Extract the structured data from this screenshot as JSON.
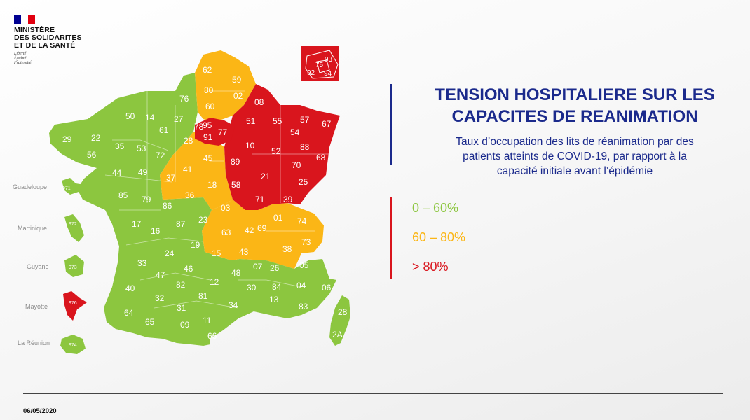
{
  "header": {
    "ministry_lines": [
      "MINISTÈRE",
      "DES SOLIDARITÉS",
      "ET DE LA SANTÉ"
    ],
    "motto_lines": [
      "Liberté",
      "Égalité",
      "Fraternité"
    ],
    "flag_colors": [
      "#000091",
      "#ffffff",
      "#e1000f"
    ]
  },
  "title_lines": [
    "TENSION HOSPITALIERE SUR LES",
    "CAPACITES DE REANIMATION"
  ],
  "subtitle_lines": [
    "Taux d’occupation des lits de réanimation par des",
    "patients atteints de COVID-19, par rapport à la",
    "capacité initiale avant l’épidémie"
  ],
  "legend": [
    {
      "label": "0 – 60%",
      "color": "#8cc63f",
      "category": "green"
    },
    {
      "label": "60 – 80%",
      "color": "#fbb616",
      "category": "orange"
    },
    {
      "label": "> 80%",
      "color": "#d9151d",
      "category": "red"
    }
  ],
  "date": "06/05/2020",
  "map": {
    "colors": {
      "green": "#8cc63f",
      "orange": "#fbb616",
      "red": "#d9151d"
    },
    "departments": [
      {
        "code": "62",
        "status": "orange"
      },
      {
        "code": "59",
        "status": "orange"
      },
      {
        "code": "80",
        "status": "orange"
      },
      {
        "code": "02",
        "status": "orange"
      },
      {
        "code": "60",
        "status": "orange"
      },
      {
        "code": "08",
        "status": "red"
      },
      {
        "code": "51",
        "status": "red"
      },
      {
        "code": "55",
        "status": "red"
      },
      {
        "code": "57",
        "status": "red"
      },
      {
        "code": "54",
        "status": "red"
      },
      {
        "code": "67",
        "status": "red"
      },
      {
        "code": "77",
        "status": "red"
      },
      {
        "code": "78",
        "status": "red"
      },
      {
        "code": "95",
        "status": "red"
      },
      {
        "code": "91",
        "status": "red"
      },
      {
        "code": "10",
        "status": "red"
      },
      {
        "code": "52",
        "status": "red"
      },
      {
        "code": "88",
        "status": "red"
      },
      {
        "code": "68",
        "status": "red"
      },
      {
        "code": "89",
        "status": "red"
      },
      {
        "code": "70",
        "status": "red"
      },
      {
        "code": "21",
        "status": "red"
      },
      {
        "code": "25",
        "status": "red"
      },
      {
        "code": "58",
        "status": "red"
      },
      {
        "code": "39",
        "status": "red"
      },
      {
        "code": "71",
        "status": "red"
      },
      {
        "code": "76",
        "status": "green"
      },
      {
        "code": "14",
        "status": "green"
      },
      {
        "code": "27",
        "status": "green"
      },
      {
        "code": "50",
        "status": "green"
      },
      {
        "code": "61",
        "status": "green"
      },
      {
        "code": "29",
        "status": "green"
      },
      {
        "code": "22",
        "status": "green"
      },
      {
        "code": "56",
        "status": "green"
      },
      {
        "code": "35",
        "status": "green"
      },
      {
        "code": "53",
        "status": "green"
      },
      {
        "code": "72",
        "status": "green"
      },
      {
        "code": "28",
        "status": "orange"
      },
      {
        "code": "45",
        "status": "orange"
      },
      {
        "code": "44",
        "status": "green"
      },
      {
        "code": "49",
        "status": "green"
      },
      {
        "code": "37",
        "status": "orange"
      },
      {
        "code": "41",
        "status": "orange"
      },
      {
        "code": "18",
        "status": "orange"
      },
      {
        "code": "36",
        "status": "orange"
      },
      {
        "code": "85",
        "status": "green"
      },
      {
        "code": "79",
        "status": "green"
      },
      {
        "code": "86",
        "status": "green"
      },
      {
        "code": "03",
        "status": "orange"
      },
      {
        "code": "01",
        "status": "orange"
      },
      {
        "code": "74",
        "status": "orange"
      },
      {
        "code": "17",
        "status": "green"
      },
      {
        "code": "16",
        "status": "green"
      },
      {
        "code": "87",
        "status": "green"
      },
      {
        "code": "23",
        "status": "green"
      },
      {
        "code": "63",
        "status": "orange"
      },
      {
        "code": "42",
        "status": "orange"
      },
      {
        "code": "69",
        "status": "orange"
      },
      {
        "code": "73",
        "status": "orange"
      },
      {
        "code": "38",
        "status": "orange"
      },
      {
        "code": "19",
        "status": "green"
      },
      {
        "code": "24",
        "status": "green"
      },
      {
        "code": "15",
        "status": "orange"
      },
      {
        "code": "43",
        "status": "orange"
      },
      {
        "code": "07",
        "status": "orange"
      },
      {
        "code": "26",
        "status": "orange"
      },
      {
        "code": "05",
        "status": "green"
      },
      {
        "code": "33",
        "status": "green"
      },
      {
        "code": "46",
        "status": "green"
      },
      {
        "code": "48",
        "status": "green"
      },
      {
        "code": "47",
        "status": "green"
      },
      {
        "code": "82",
        "status": "green"
      },
      {
        "code": "12",
        "status": "green"
      },
      {
        "code": "30",
        "status": "green"
      },
      {
        "code": "84",
        "status": "green"
      },
      {
        "code": "04",
        "status": "green"
      },
      {
        "code": "06",
        "status": "green"
      },
      {
        "code": "40",
        "status": "green"
      },
      {
        "code": "32",
        "status": "green"
      },
      {
        "code": "81",
        "status": "green"
      },
      {
        "code": "34",
        "status": "green"
      },
      {
        "code": "13",
        "status": "green"
      },
      {
        "code": "83",
        "status": "green"
      },
      {
        "code": "64",
        "status": "green"
      },
      {
        "code": "65",
        "status": "green"
      },
      {
        "code": "31",
        "status": "green"
      },
      {
        "code": "09",
        "status": "green"
      },
      {
        "code": "11",
        "status": "green"
      },
      {
        "code": "66",
        "status": "green"
      },
      {
        "code": "28",
        "status": "green",
        "note": "Corse-du-Sud / Haute-Corse label"
      },
      {
        "code": "2A",
        "status": "green"
      }
    ],
    "paris_inset": [
      {
        "code": "92",
        "status": "red"
      },
      {
        "code": "75",
        "status": "red"
      },
      {
        "code": "93",
        "status": "red"
      },
      {
        "code": "94",
        "status": "red"
      }
    ],
    "overseas": [
      {
        "name": "Guadeloupe",
        "code": "971",
        "status": "green"
      },
      {
        "name": "Martinique",
        "code": "972",
        "status": "green"
      },
      {
        "name": "Guyane",
        "code": "973",
        "status": "green"
      },
      {
        "name": "Mayotte",
        "code": "976",
        "status": "red"
      },
      {
        "name": "La Réunion",
        "code": "974",
        "status": "green"
      }
    ]
  }
}
